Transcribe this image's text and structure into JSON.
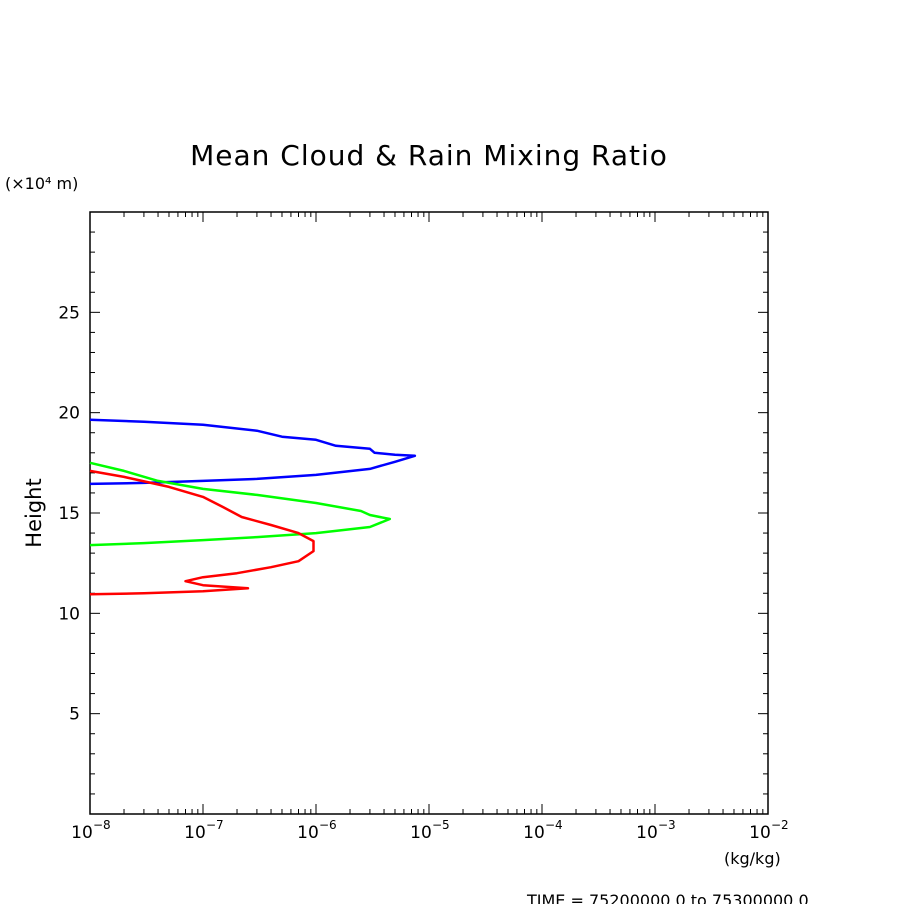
{
  "chart_data": {
    "type": "line",
    "title": "Mean Cloud & Rain Mixing Ratio",
    "ylabel": "Height",
    "yunit": "(×10⁴ m)",
    "xunit": "(kg/kg)",
    "xscale": "log",
    "xlim": [
      1e-08,
      0.01
    ],
    "ylim": [
      0,
      30
    ],
    "yticks": [
      {
        "value": 5,
        "label": "5"
      },
      {
        "value": 10,
        "label": "10"
      },
      {
        "value": 15,
        "label": "15"
      },
      {
        "value": 20,
        "label": "20"
      },
      {
        "value": 25,
        "label": "25"
      }
    ],
    "xticks": [
      {
        "value": 1e-08,
        "base": "10",
        "exp": "−8"
      },
      {
        "value": 1e-07,
        "base": "10",
        "exp": "−7"
      },
      {
        "value": 1e-06,
        "base": "10",
        "exp": "−6"
      },
      {
        "value": 1e-05,
        "base": "10",
        "exp": "−5"
      },
      {
        "value": 0.0001,
        "base": "10",
        "exp": "−4"
      },
      {
        "value": 0.001,
        "base": "10",
        "exp": "−3"
      },
      {
        "value": 0.01,
        "base": "10",
        "exp": "−2"
      }
    ],
    "grid": false,
    "series": [
      {
        "color": "#0000ff",
        "points": [
          [
            1e-08,
            19.65
          ],
          [
            3e-08,
            19.55
          ],
          [
            1e-07,
            19.4
          ],
          [
            3e-07,
            19.1
          ],
          [
            5e-07,
            18.8
          ],
          [
            1e-06,
            18.65
          ],
          [
            1.5e-06,
            18.35
          ],
          [
            3e-06,
            18.2
          ],
          [
            3.3e-06,
            18.0
          ],
          [
            5e-06,
            17.9
          ],
          [
            7.5e-06,
            17.85
          ],
          [
            5e-06,
            17.55
          ],
          [
            3e-06,
            17.2
          ],
          [
            1e-06,
            16.9
          ],
          [
            3e-07,
            16.7
          ],
          [
            1e-07,
            16.6
          ],
          [
            3e-08,
            16.5
          ],
          [
            1e-08,
            16.45
          ]
        ]
      },
      {
        "color": "#00ff00",
        "points": [
          [
            1e-08,
            17.5
          ],
          [
            2e-08,
            17.1
          ],
          [
            4e-08,
            16.6
          ],
          [
            1e-07,
            16.2
          ],
          [
            3e-07,
            15.9
          ],
          [
            1e-06,
            15.5
          ],
          [
            2.5e-06,
            15.1
          ],
          [
            3e-06,
            14.9
          ],
          [
            4.5e-06,
            14.7
          ],
          [
            3e-06,
            14.3
          ],
          [
            1e-06,
            14.0
          ],
          [
            3e-07,
            13.8
          ],
          [
            1e-07,
            13.65
          ],
          [
            3e-08,
            13.5
          ],
          [
            1e-08,
            13.4
          ]
        ]
      },
      {
        "color": "#ff0000",
        "points": [
          [
            1e-08,
            17.1
          ],
          [
            2e-08,
            16.8
          ],
          [
            5e-08,
            16.3
          ],
          [
            1e-07,
            15.8
          ],
          [
            1.5e-07,
            15.3
          ],
          [
            2.2e-07,
            14.8
          ],
          [
            4e-07,
            14.4
          ],
          [
            7e-07,
            14.0
          ],
          [
            9.5e-07,
            13.6
          ],
          [
            9.5e-07,
            13.1
          ],
          [
            7e-07,
            12.6
          ],
          [
            4e-07,
            12.3
          ],
          [
            2e-07,
            12.0
          ],
          [
            1e-07,
            11.8
          ],
          [
            7e-08,
            11.6
          ],
          [
            1e-07,
            11.4
          ],
          [
            2.5e-07,
            11.25
          ],
          [
            1e-07,
            11.1
          ],
          [
            3e-08,
            11.0
          ],
          [
            1e-08,
            10.95
          ]
        ]
      }
    ]
  },
  "footer": {
    "time_label": "TIME = 75200000.0 to 75300000.0"
  }
}
